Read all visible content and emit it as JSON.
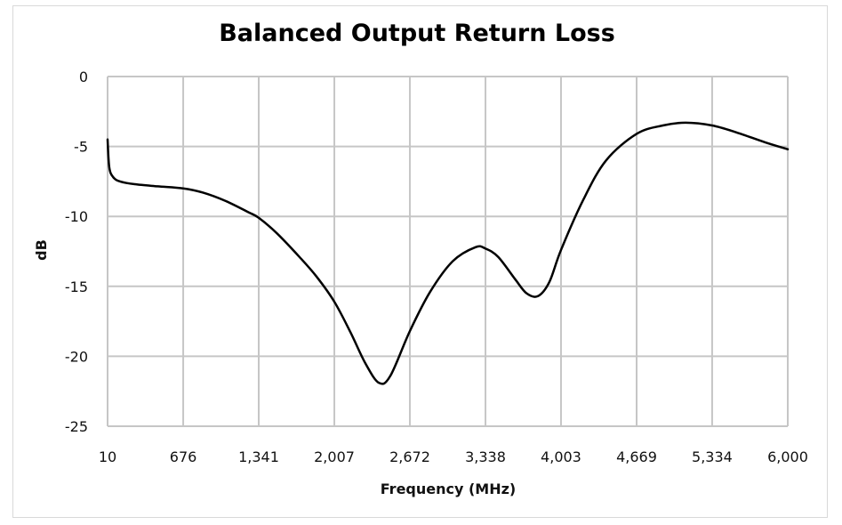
{
  "chart_data": {
    "type": "line",
    "title": "Balanced Output Return Loss",
    "xlabel": "Frequency (MHz)",
    "ylabel": "dB",
    "xlim": [
      10,
      6000
    ],
    "ylim": [
      -25,
      0
    ],
    "x_ticks": [
      10,
      676,
      1341,
      2007,
      2672,
      3338,
      4003,
      4669,
      5334,
      6000
    ],
    "x_tick_labels": [
      "10",
      "676",
      "1,341",
      "2,007",
      "2,672",
      "3,338",
      "4,003",
      "4,669",
      "5,334",
      "6,000"
    ],
    "y_ticks": [
      0,
      -5,
      -10,
      -15,
      -20,
      -25
    ],
    "y_tick_labels": [
      "0",
      "-5",
      "-10",
      "-15",
      "-20",
      "-25"
    ],
    "grid": true,
    "legend": "none",
    "line_color": "#000000",
    "grid_color": "#c6c6c6",
    "series": [
      {
        "x": [
          10,
          25,
          60,
          120,
          250,
          450,
          676,
          850,
          1050,
          1250,
          1341,
          1500,
          1700,
          1850,
          2007,
          2150,
          2280,
          2400,
          2500,
          2672,
          2850,
          3050,
          3250,
          3338,
          3450,
          3600,
          3700,
          3800,
          3900,
          4003,
          4200,
          4400,
          4669,
          4900,
          5100,
          5334,
          5550,
          5800,
          6000
        ],
        "y": [
          -4.5,
          -6.5,
          -7.2,
          -7.5,
          -7.7,
          -7.85,
          -8.0,
          -8.3,
          -8.9,
          -9.7,
          -10.1,
          -11.2,
          -12.9,
          -14.3,
          -16.1,
          -18.3,
          -20.5,
          -21.9,
          -21.4,
          -18.2,
          -15.4,
          -13.2,
          -12.2,
          -12.3,
          -12.9,
          -14.5,
          -15.5,
          -15.7,
          -14.7,
          -12.4,
          -8.8,
          -6.0,
          -4.1,
          -3.5,
          -3.3,
          -3.5,
          -4.0,
          -4.7,
          -5.2
        ]
      }
    ]
  }
}
